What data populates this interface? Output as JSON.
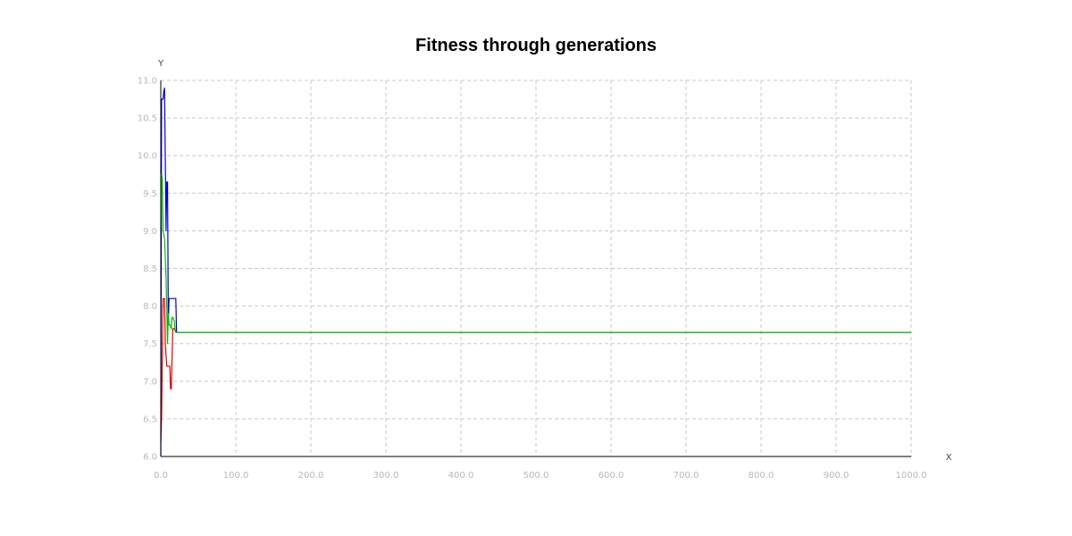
{
  "chart_data": {
    "type": "line",
    "title": "Fitness through generations",
    "xlabel": "X",
    "ylabel": "Y",
    "xlim": [
      0,
      1000
    ],
    "ylim": [
      6.0,
      11.0
    ],
    "x_ticks": [
      "0.0",
      "100.0",
      "200.0",
      "300.0",
      "400.0",
      "500.0",
      "600.0",
      "700.0",
      "800.0",
      "900.0",
      "1000.0"
    ],
    "y_ticks": [
      "6.0",
      "6.5",
      "7.0",
      "7.5",
      "8.0",
      "8.5",
      "9.0",
      "9.5",
      "10.0",
      "10.5",
      "11.0"
    ],
    "grid": true,
    "series": [
      {
        "color": "#dd0000",
        "x": [
          0,
          1,
          3,
          5,
          6,
          8,
          10,
          12,
          13,
          14,
          16,
          18,
          20,
          1000
        ],
        "y": [
          6.2,
          6.5,
          8.1,
          8.1,
          7.5,
          7.2,
          7.2,
          7.2,
          6.9,
          6.9,
          7.7,
          7.7,
          7.65,
          7.65
        ]
      },
      {
        "color": "#0000cc",
        "x": [
          0,
          1,
          2,
          3,
          4,
          5,
          7,
          8,
          9,
          10,
          11,
          12,
          14,
          16,
          18,
          20,
          21,
          1000
        ],
        "y": [
          6.0,
          10.75,
          10.75,
          10.75,
          10.85,
          10.9,
          9.0,
          9.65,
          9.65,
          7.8,
          8.1,
          8.1,
          8.1,
          8.1,
          8.1,
          8.1,
          7.65,
          7.65
        ]
      },
      {
        "color": "#00bb00",
        "x": [
          0,
          1,
          2,
          3,
          5,
          7,
          9,
          10,
          11,
          12,
          14,
          15,
          16,
          18,
          19,
          20,
          1000
        ],
        "y": [
          9.0,
          9.75,
          9.7,
          9.0,
          8.9,
          8.4,
          7.5,
          7.9,
          7.75,
          7.75,
          7.7,
          7.85,
          7.85,
          7.8,
          7.7,
          7.65,
          7.65
        ]
      }
    ]
  }
}
